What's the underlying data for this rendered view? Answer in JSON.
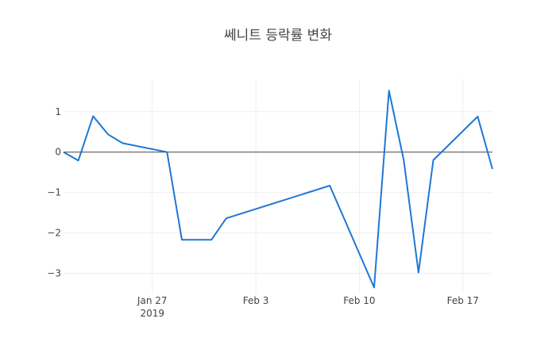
{
  "chart_data": {
    "type": "line",
    "title": "쎄니트 등락률 변화",
    "xlabel": "",
    "ylabel": "",
    "xlim": [
      "2019-01-21",
      "2019-02-19"
    ],
    "ylim": [
      -3.5,
      1.8
    ],
    "grid": true,
    "x_ticks": [
      {
        "date": "2019-01-27",
        "label": "Jan 27",
        "sublabel": "2019"
      },
      {
        "date": "2019-02-03",
        "label": "Feb 3",
        "sublabel": ""
      },
      {
        "date": "2019-02-10",
        "label": "Feb 10",
        "sublabel": ""
      },
      {
        "date": "2019-02-17",
        "label": "Feb 17",
        "sublabel": ""
      }
    ],
    "y_ticks": [
      {
        "value": 1,
        "label": "1"
      },
      {
        "value": 0,
        "label": "0"
      },
      {
        "value": -1,
        "label": "−1"
      },
      {
        "value": -2,
        "label": "−2"
      },
      {
        "value": -3,
        "label": "−3"
      }
    ],
    "series": [
      {
        "color": "#1f77d4",
        "x": [
          "2019-01-21",
          "2019-01-22",
          "2019-01-23",
          "2019-01-24",
          "2019-01-25",
          "2019-01-28",
          "2019-01-29",
          "2019-01-31",
          "2019-02-01",
          "2019-02-08",
          "2019-02-11",
          "2019-02-12",
          "2019-02-13",
          "2019-02-14",
          "2019-02-15",
          "2019-02-18",
          "2019-02-19"
        ],
        "y": [
          0.0,
          -0.21,
          0.89,
          0.44,
          0.22,
          0.0,
          -2.17,
          -2.17,
          -1.64,
          -0.83,
          -3.35,
          1.52,
          -0.2,
          -2.98,
          -0.2,
          0.88,
          -0.42
        ]
      }
    ]
  }
}
